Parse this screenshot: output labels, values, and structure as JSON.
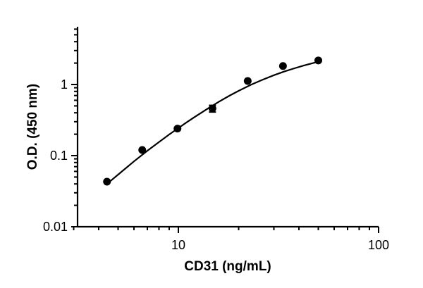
{
  "chart_data": {
    "type": "scatter",
    "title": "",
    "xlabel": "CD31 (ng/mL)",
    "ylabel": "O.D. (450 nm)",
    "x_scale": "log",
    "y_scale": "log",
    "xlim": [
      3,
      100
    ],
    "ylim": [
      0.01,
      5
    ],
    "x_ticks": [
      {
        "value": 10,
        "label": "10"
      },
      {
        "value": 100,
        "label": "100"
      }
    ],
    "y_ticks": [
      {
        "value": 0.01,
        "label": "0.01"
      },
      {
        "value": 0.1,
        "label": "0.1"
      },
      {
        "value": 1,
        "label": "1"
      }
    ],
    "grid": false,
    "legend": "none",
    "series": [
      {
        "points": [
          {
            "x": 4.4,
            "y": 0.043
          },
          {
            "x": 6.6,
            "y": 0.12
          },
          {
            "x": 9.9,
            "y": 0.24
          },
          {
            "x": 14.8,
            "y": 0.46,
            "yerr": [
              0.41,
              0.51
            ]
          },
          {
            "x": 22.2,
            "y": 1.12
          },
          {
            "x": 33.3,
            "y": 1.82
          },
          {
            "x": 50,
            "y": 2.18
          }
        ],
        "fit_curve": {
          "type": "4PL",
          "x": [
            4.4,
            5,
            6,
            7,
            8,
            9,
            10,
            11,
            12,
            14,
            16,
            18,
            20,
            23,
            26,
            30,
            34,
            38,
            42,
            46,
            50
          ],
          "y": [
            0.04,
            0.054,
            0.083,
            0.117,
            0.155,
            0.198,
            0.244,
            0.294,
            0.346,
            0.458,
            0.576,
            0.696,
            0.815,
            0.988,
            1.15,
            1.35,
            1.53,
            1.69,
            1.84,
            1.97,
            2.09
          ]
        }
      }
    ]
  }
}
